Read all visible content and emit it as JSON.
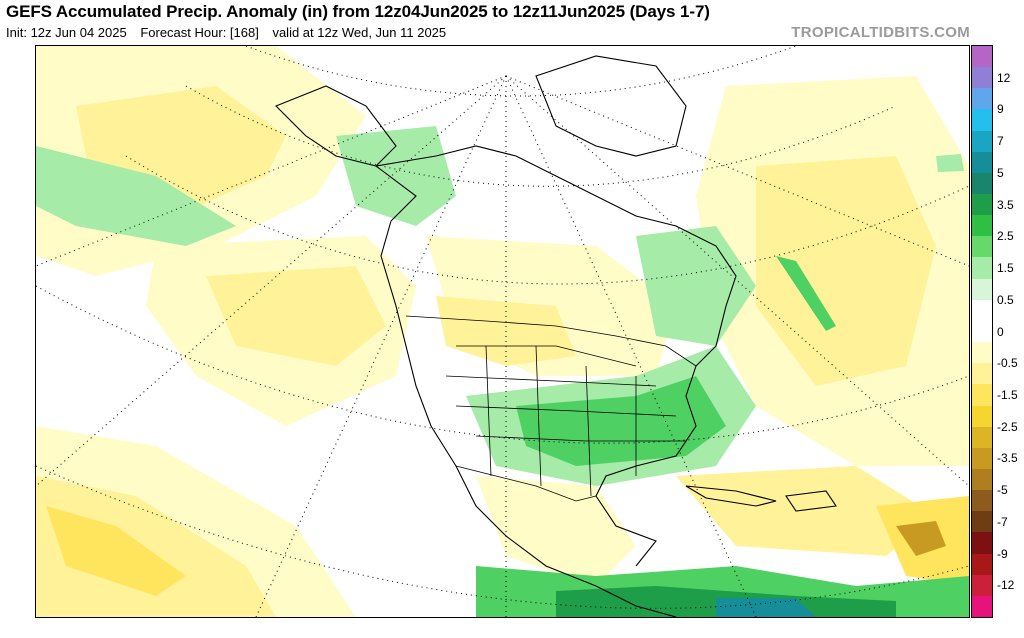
{
  "header": {
    "title": "GEFS Accumulated Precip. Anomaly (in) from 12z04Jun2025 to 12z11Jun2025 (Days 1-7)",
    "init": "Init: 12z Jun 04 2025",
    "forecast_hour": "Forecast Hour: [168]",
    "valid": "valid at 12z Wed, Jun 11 2025",
    "credit": "TROPICALTIDBITS.COM"
  },
  "colorbar": {
    "labels": [
      "12",
      "9",
      "7",
      "5",
      "3.5",
      "2.5",
      "1.5",
      "0.5",
      "0",
      "-0.5",
      "-1.5",
      "-2.5",
      "-3.5",
      "-5",
      "-7",
      "-9",
      "-12"
    ],
    "colors": [
      "#b565c6",
      "#8f7fd6",
      "#5fa6ea",
      "#25bfee",
      "#1aa6c2",
      "#158e9a",
      "#19856c",
      "#1f9e4a",
      "#2fbf45",
      "#67d96b",
      "#a6eba8",
      "#d6f6d7",
      "#ffffff",
      "#ffffff",
      "#fffcc8",
      "#fff299",
      "#ffe55e",
      "#f7d531",
      "#dcb426",
      "#c89a22",
      "#ae7e21",
      "#8e5b1e",
      "#6e3d14",
      "#7d1111",
      "#a81818",
      "#cc1f3a",
      "#e6137c"
    ]
  },
  "map": {
    "region": "North America",
    "palette": {
      "land_edge": "#000000",
      "wet_light": "#a6eba8",
      "wet_mid": "#4fd063",
      "wet_dark": "#1f9e4a",
      "wet_extreme": "#158e9a",
      "dry_light": "#fffcc8",
      "dry_mid": "#fff299",
      "dry_strong": "#ffe55e",
      "dry_extreme": "#c89a22"
    }
  }
}
